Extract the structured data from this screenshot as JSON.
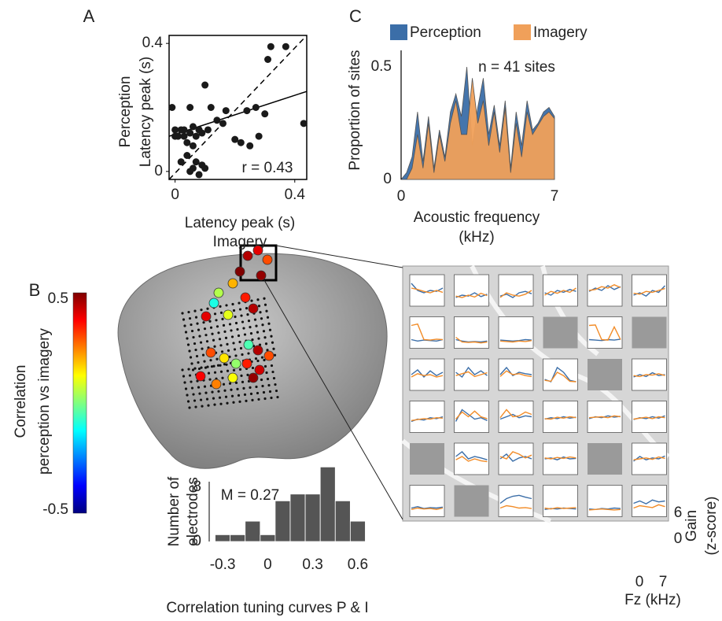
{
  "chart_data": [
    {
      "type": "scatter",
      "panel": "A",
      "x": [
        -0.01,
        0.0,
        0.01,
        0.02,
        0.0,
        0.03,
        0.03,
        0.05,
        0.06,
        0.05,
        0.07,
        0.08,
        0.08,
        0.09,
        0.1,
        0.11,
        0.12,
        0.14,
        0.16,
        0.17,
        0.2,
        0.22,
        0.25,
        0.27,
        0.28,
        0.3,
        0.31,
        0.32,
        0.37,
        0.43,
        0.24,
        0.02,
        0.04,
        0.05,
        0.06,
        0.07,
        0.08,
        0.09,
        0.1,
        0.06,
        0.04
      ],
      "y": [
        0.2,
        0.11,
        0.11,
        0.13,
        0.13,
        0.13,
        0.11,
        0.12,
        0.14,
        0.2,
        0.11,
        0.13,
        0.13,
        0.12,
        0.27,
        0.13,
        0.2,
        0.16,
        0.15,
        0.19,
        0.1,
        0.09,
        0.08,
        0.2,
        0.11,
        0.18,
        0.35,
        0.39,
        0.39,
        0.15,
        0.19,
        0.03,
        0.05,
        0.0,
        0.01,
        0.03,
        -0.01,
        0.02,
        0.01,
        0.08,
        0.09
      ],
      "color": "#1a1a1a",
      "fit_line": {
        "x": [
          -0.02,
          0.44
        ],
        "y": [
          0.11,
          0.25
        ]
      },
      "xlim": [
        -0.02,
        0.44
      ],
      "ylim": [
        -0.025,
        0.425
      ],
      "xticks": [
        0,
        0.4
      ],
      "yticks": [
        0,
        0.4
      ],
      "xlabel": [
        "Latency peak (s)",
        "Imagery"
      ],
      "ylabel": [
        "Perception",
        "Latency peak (s)"
      ],
      "annotation": "r = 0.43"
    },
    {
      "type": "area",
      "panel": "C",
      "x": [
        0,
        0.25,
        0.5,
        0.75,
        1,
        1.25,
        1.5,
        1.75,
        2,
        2.25,
        2.5,
        2.75,
        3,
        3.25,
        3.5,
        3.75,
        4,
        4.25,
        4.5,
        4.75,
        5,
        5.25,
        5.5,
        5.75,
        6,
        6.25,
        6.5,
        6.75,
        7
      ],
      "series": [
        {
          "name": "Perception",
          "color": "#3b6ea8",
          "values": [
            0,
            0.03,
            0.1,
            0.3,
            0.08,
            0.28,
            0.05,
            0.22,
            0.1,
            0.3,
            0.38,
            0.28,
            0.5,
            0.15,
            0.32,
            0.45,
            0.2,
            0.33,
            0.15,
            0.35,
            0.05,
            0.3,
            0.15,
            0.35,
            0.22,
            0.25,
            0.3,
            0.32,
            0.28
          ]
        },
        {
          "name": "Imagery",
          "color": "#f0a05a",
          "values": [
            0,
            0.0,
            0.05,
            0.2,
            0.05,
            0.25,
            0.03,
            0.2,
            0.08,
            0.25,
            0.35,
            0.2,
            0.2,
            0.45,
            0.25,
            0.35,
            0.15,
            0.3,
            0.12,
            0.32,
            0.03,
            0.25,
            0.1,
            0.3,
            0.2,
            0.24,
            0.28,
            0.3,
            0.27
          ]
        }
      ],
      "xlim": [
        0,
        7
      ],
      "ylim": [
        0,
        0.55
      ],
      "xticks": [
        0,
        7
      ],
      "yticks": [
        0,
        0.5
      ],
      "xlabel": [
        "Acoustic frequency",
        "(kHz)"
      ],
      "ylabel": "Proportion of sites",
      "annotation": "n = 41 sites"
    },
    {
      "type": "electrode-map",
      "panel": "B",
      "colormap": "jet",
      "clim": [
        -0.5,
        0.5
      ],
      "ticks": [
        0.5,
        -0.5
      ],
      "label": [
        "Correlation",
        "perception vs imagery"
      ],
      "values": [
        0.45,
        0.4,
        0.3,
        0.5,
        0.2,
        0.05,
        0.35,
        0.45,
        0.1,
        -0.1,
        0.48,
        0.4,
        0.3,
        0.15,
        0.02,
        -0.05,
        0.45,
        0.3,
        0.35,
        0.42,
        0.38,
        0.25,
        0.12,
        0.48
      ]
    },
    {
      "type": "histogram",
      "bins": [
        -0.35,
        -0.25,
        -0.15,
        -0.05,
        0.05,
        0.15,
        0.25,
        0.35,
        0.45,
        0.55,
        0.65
      ],
      "counts": [
        1,
        1,
        3,
        1,
        6,
        7,
        7,
        11,
        6,
        3
      ],
      "color": "#555555",
      "xlim": [
        -0.4,
        0.7
      ],
      "ylim": [
        0,
        11.5
      ],
      "xticks": [
        -0.3,
        0,
        0.3,
        0.6
      ],
      "yticks": [
        0,
        8
      ],
      "xlabel": "Correlation tuning curves P & I",
      "ylabel": [
        "Number of",
        "electrodes"
      ],
      "annotation": "M = 0.27"
    },
    {
      "type": "tuning-grid",
      "colors": {
        "p": "#3b6ea8",
        "i": "#f28c28"
      },
      "x": [
        0,
        1.4,
        2.8,
        4.2,
        5.6,
        7
      ],
      "xlim": [
        0,
        7
      ],
      "ylim": [
        0,
        6
      ],
      "xticks": [
        0,
        7
      ],
      "yticks": [
        6,
        0
      ],
      "xlabel": "Fz (kHz)",
      "ylabel": [
        "Gain",
        "(z-score)"
      ],
      "cells": [
        [
          {
            "p": [
              4.5,
              3,
              2.5,
              3,
              2.8,
              3.5
            ],
            "i": [
              3.5,
              3.2,
              2.8,
              2.5,
              3,
              2.6
            ]
          },
          {
            "p": [
              1.5,
              2,
              1.8,
              2.5,
              1.7,
              2.2
            ],
            "i": [
              1.8,
              1.5,
              2,
              1.6,
              2.4,
              1.9
            ]
          },
          {
            "p": [
              1.8,
              2.2,
              1.5,
              2.5,
              2.8,
              2.3
            ],
            "i": [
              1.5,
              2.5,
              2,
              1.8,
              2.2,
              3
            ]
          },
          {
            "p": [
              2.5,
              2,
              3,
              2.6,
              3.2,
              2.8
            ],
            "i": [
              2,
              2.8,
              2.4,
              3,
              2.6,
              3.5
            ]
          },
          {
            "p": [
              2.8,
              3.5,
              3,
              4,
              3.2,
              3.8
            ],
            "i": [
              3,
              3.2,
              3.8,
              3.5,
              4.2,
              3.6
            ]
          },
          {
            "p": [
              2,
              2.5,
              1.8,
              3,
              2.6,
              4
            ],
            "i": [
              2.4,
              2.2,
              2.8,
              2.6,
              3,
              3.4
            ]
          }
        ],
        [
          {
            "p": [
              1.5,
              1.2,
              1.4,
              1.3,
              1.2,
              1.5
            ],
            "i": [
              4.5,
              4.8,
              1.5,
              1.4,
              1.6,
              1.5
            ]
          },
          {
            "p": [
              1.5,
              1.2,
              1,
              1.1,
              1,
              1.2
            ],
            "i": [
              2,
              1,
              0.9,
              1,
              0.8,
              1
            ]
          },
          {
            "p": [
              1.4,
              1.3,
              1.2,
              1.3,
              1.5,
              1.4
            ],
            "i": [
              1.2,
              1.1,
              1,
              1.2,
              1.1,
              1.3
            ]
          },
          null,
          {
            "p": [
              1.5,
              1.4,
              1.3,
              1.5,
              1.4,
              1.6
            ],
            "i": [
              4.5,
              4.6,
              1.5,
              1.4,
              4.2,
              1.5
            ]
          },
          null
        ],
        [
          {
            "p": [
              3,
              4,
              2.5,
              3.8,
              2.8,
              3.5
            ],
            "i": [
              2.5,
              3.2,
              2.8,
              3,
              2.5,
              2.8
            ]
          },
          {
            "p": [
              3.5,
              2.5,
              4.5,
              3,
              3.8,
              2.8
            ],
            "i": [
              2.8,
              3.2,
              3.6,
              2.6,
              3,
              3.4
            ]
          },
          {
            "p": [
              3,
              4.5,
              2.8,
              3.5,
              3.2,
              3
            ],
            "i": [
              2.6,
              3.8,
              3,
              3.2,
              2.8,
              2.6
            ]
          },
          {
            "p": [
              2,
              1.5,
              4.5,
              3.5,
              1.8,
              1.5
            ],
            "i": [
              1.8,
              1.6,
              3.5,
              2.8,
              1.6,
              1.5
            ]
          },
          null,
          {
            "p": [
              2.5,
              3,
              2.6,
              3.4,
              2.8,
              3
            ],
            "i": [
              2.8,
              2.6,
              3,
              2.9,
              3.2,
              2.8
            ]
          }
        ],
        [
          {
            "p": [
              2,
              2.5,
              2.3,
              2.8,
              2.6,
              3
            ],
            "i": [
              2.2,
              2.4,
              2.6,
              2.5,
              2.8,
              2.7
            ]
          },
          {
            "p": [
              2,
              4.5,
              3.5,
              2.5,
              2.8,
              2.2
            ],
            "i": [
              2.5,
              4,
              3,
              4.2,
              3,
              2.6
            ]
          },
          {
            "p": [
              2.5,
              3,
              3.5,
              2.8,
              3.2,
              3
            ],
            "i": [
              2.8,
              4.5,
              3,
              3.2,
              4,
              3.5
            ]
          },
          {
            "p": [
              2.5,
              2.8,
              2.6,
              3,
              2.7,
              2.9
            ],
            "i": [
              2.6,
              2.5,
              2.9,
              2.7,
              3,
              2.8
            ]
          },
          {
            "p": [
              2.6,
              3,
              2.8,
              3.2,
              2.9,
              3.1
            ],
            "i": [
              2.8,
              2.9,
              3,
              2.8,
              3.2,
              3
            ]
          },
          {
            "p": [
              2.4,
              2.8,
              2.6,
              3,
              2.7,
              3.2
            ],
            "i": [
              2.5,
              2.7,
              2.9,
              2.6,
              3,
              2.8
            ]
          }
        ],
        [
          null,
          {
            "p": [
              3.5,
              4.5,
              3,
              3.5,
              3.2,
              2.8
            ],
            "i": [
              2.8,
              3.5,
              2.5,
              3,
              2.6,
              2.4
            ]
          },
          {
            "p": [
              3,
              4,
              2.5,
              3.2,
              3.5,
              3
            ],
            "i": [
              3.5,
              3,
              4.5,
              4,
              3.2,
              3.8
            ]
          },
          {
            "p": [
              3,
              3.2,
              2.8,
              3.4,
              3,
              3.1
            ],
            "i": [
              3.2,
              3,
              3.3,
              3.1,
              3.4,
              3.2
            ]
          },
          null,
          {
            "p": [
              2.5,
              3.5,
              2.8,
              3.2,
              3,
              3.6
            ],
            "i": [
              2.8,
              3,
              3.2,
              2.9,
              3.4,
              3.1
            ]
          }
        ],
        [
          {
            "p": [
              1.5,
              1.8,
              1.4,
              1.6,
              1.5,
              1.7
            ],
            "i": [
              1.2,
              1.5,
              1.3,
              1.4,
              1.2,
              1.5
            ]
          },
          null,
          {
            "p": [
              2.5,
              3.5,
              4,
              4.2,
              3.8,
              3.5
            ],
            "i": [
              1.5,
              2,
              1.8,
              1.5,
              1.6,
              1.4
            ]
          },
          {
            "p": [
              1.2,
              1.4,
              1.3,
              1.5,
              1.4,
              1.3
            ],
            "i": [
              1.5,
              1.3,
              1.6,
              1.4,
              1.5,
              1.6
            ]
          },
          {
            "p": [
              1.3,
              1.2,
              1.4,
              1.3,
              1.5,
              1.4
            ],
            "i": [
              1.1,
              1.2,
              1.3,
              1.2,
              1.1,
              1.2
            ]
          },
          {
            "p": [
              2.5,
              3,
              2.4,
              3.2,
              2.8,
              3
            ],
            "i": [
              1.5,
              2,
              1.8,
              1.6,
              2.2,
              1.8
            ]
          }
        ]
      ]
    }
  ]
}
